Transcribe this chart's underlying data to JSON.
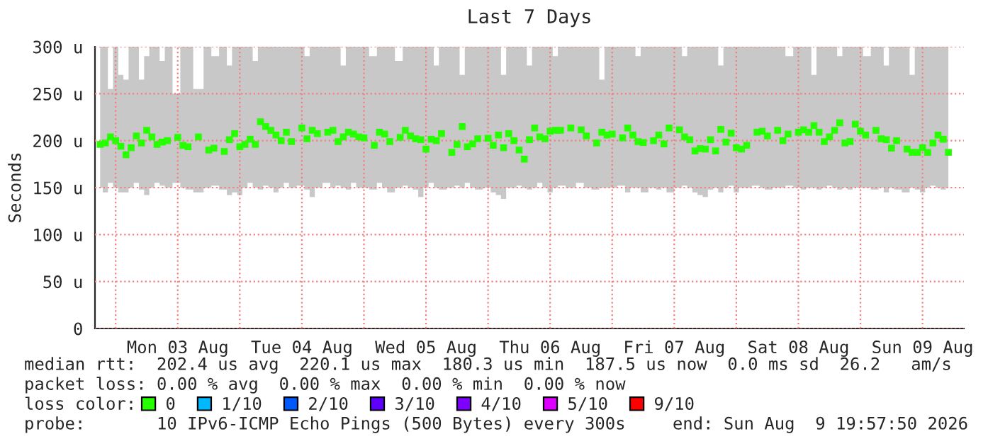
{
  "chart_data": {
    "type": "scatter",
    "title": "Last 7 Days",
    "ylabel": "Seconds",
    "legend_title": "loss color:",
    "annotations": [
      "median rtt:  202.4 us avg  220.1 us max  180.3 us min  187.5 us now  0.0 ms sd  26.2   am/s",
      "packet loss: 0.00 % avg  0.00 % max  0.00 % min  0.00 % now",
      "probe:       10 IPv6-ICMP Echo Pings (500 Bytes) every 300s",
      "end: Sun Aug  9 19:57:50 2026"
    ],
    "xlim": [
      "2026-08-02T20:00",
      "2026-08-09T20:00"
    ],
    "xticks": [
      {
        "value": "2026-08-03T00:00",
        "label": null
      },
      {
        "value": "2026-08-03T12:00",
        "label": "Mon 03 Aug"
      },
      {
        "value": "2026-08-04T00:00",
        "label": null
      },
      {
        "value": "2026-08-04T12:00",
        "label": "Tue 04 Aug"
      },
      {
        "value": "2026-08-05T00:00",
        "label": null
      },
      {
        "value": "2026-08-05T12:00",
        "label": "Wed 05 Aug"
      },
      {
        "value": "2026-08-06T00:00",
        "label": null
      },
      {
        "value": "2026-08-06T12:00",
        "label": "Thu 06 Aug"
      },
      {
        "value": "2026-08-07T00:00",
        "label": null
      },
      {
        "value": "2026-08-07T12:00",
        "label": "Fri 07 Aug"
      },
      {
        "value": "2026-08-08T00:00",
        "label": null
      },
      {
        "value": "2026-08-08T12:00",
        "label": "Sat 08 Aug"
      },
      {
        "value": "2026-08-09T00:00",
        "label": null
      },
      {
        "value": "2026-08-09T12:00",
        "label": "Sun 09 Aug"
      }
    ],
    "ylim": [
      0,
      300
    ],
    "yticks": [
      0,
      {
        "value": 50,
        "label": "50 u"
      },
      {
        "value": 100,
        "label": "100 u"
      },
      {
        "value": 150,
        "label": "150 u"
      },
      {
        "value": 200,
        "label": "200 u"
      },
      {
        "value": 250,
        "label": "250 u"
      },
      {
        "value": 300,
        "label": "300 u"
      }
    ],
    "grid": true,
    "legend": "bottom",
    "marker": "square",
    "series": [
      {
        "name": "0",
        "color": "#26ff00",
        "x": [
          "2026-08-02T21:00",
          "2026-08-02T22:00",
          "2026-08-02T23:00",
          "2026-08-03T00:00",
          "2026-08-03T01:00",
          "2026-08-03T02:00",
          "2026-08-03T03:00",
          "2026-08-03T04:00",
          "2026-08-03T05:00",
          "2026-08-03T06:00",
          "2026-08-03T07:00",
          "2026-08-03T08:00",
          "2026-08-03T09:00",
          "2026-08-03T10:00",
          "2026-08-03T12:00",
          "2026-08-03T13:00",
          "2026-08-03T14:00",
          "2026-08-03T16:00",
          "2026-08-03T18:00",
          "2026-08-03T19:00",
          "2026-08-03T21:00",
          "2026-08-03T22:00",
          "2026-08-03T23:00",
          "2026-08-04T00:00",
          "2026-08-04T01:00",
          "2026-08-04T02:00",
          "2026-08-04T03:00",
          "2026-08-04T04:00",
          "2026-08-04T05:00",
          "2026-08-04T06:00",
          "2026-08-04T07:00",
          "2026-08-04T08:00",
          "2026-08-04T09:00",
          "2026-08-04T10:00",
          "2026-08-04T12:00",
          "2026-08-04T13:00",
          "2026-08-04T14:00",
          "2026-08-04T15:00",
          "2026-08-04T17:00",
          "2026-08-04T18:00",
          "2026-08-04T19:00",
          "2026-08-04T20:00",
          "2026-08-04T21:00",
          "2026-08-04T22:00",
          "2026-08-04T23:00",
          "2026-08-05T00:00",
          "2026-08-05T02:00",
          "2026-08-05T03:00",
          "2026-08-05T04:00",
          "2026-08-05T05:00",
          "2026-08-05T07:00",
          "2026-08-05T08:00",
          "2026-08-05T09:00",
          "2026-08-05T10:00",
          "2026-08-05T11:00",
          "2026-08-05T12:00",
          "2026-08-05T13:00",
          "2026-08-05T14:00",
          "2026-08-05T15:00",
          "2026-08-05T17:00",
          "2026-08-05T18:00",
          "2026-08-05T19:00",
          "2026-08-05T20:00",
          "2026-08-05T21:00",
          "2026-08-05T22:00",
          "2026-08-06T00:00",
          "2026-08-06T01:00",
          "2026-08-06T02:00",
          "2026-08-06T03:00",
          "2026-08-06T04:00",
          "2026-08-06T05:00",
          "2026-08-06T06:00",
          "2026-08-06T07:00",
          "2026-08-06T08:00",
          "2026-08-06T09:00",
          "2026-08-06T10:00",
          "2026-08-06T11:00",
          "2026-08-06T12:00",
          "2026-08-06T13:00",
          "2026-08-06T14:00",
          "2026-08-06T16:00",
          "2026-08-06T18:00",
          "2026-08-06T19:00",
          "2026-08-06T21:00",
          "2026-08-06T22:00",
          "2026-08-06T23:00",
          "2026-08-07T00:00",
          "2026-08-07T02:00",
          "2026-08-07T03:00",
          "2026-08-07T04:00",
          "2026-08-07T05:00",
          "2026-08-07T06:00",
          "2026-08-07T08:00",
          "2026-08-07T09:00",
          "2026-08-07T10:00",
          "2026-08-07T11:00",
          "2026-08-07T13:00",
          "2026-08-07T14:00",
          "2026-08-07T15:00",
          "2026-08-07T16:00",
          "2026-08-07T17:00",
          "2026-08-07T18:00",
          "2026-08-07T19:00",
          "2026-08-07T20:00",
          "2026-08-07T21:00",
          "2026-08-07T22:00",
          "2026-08-07T23:00",
          "2026-08-08T00:00",
          "2026-08-08T01:00",
          "2026-08-08T02:00",
          "2026-08-08T04:00",
          "2026-08-08T05:00",
          "2026-08-08T06:00",
          "2026-08-08T08:00",
          "2026-08-08T09:00",
          "2026-08-08T10:00",
          "2026-08-08T12:00",
          "2026-08-08T13:00",
          "2026-08-08T14:00",
          "2026-08-08T15:00",
          "2026-08-08T16:00",
          "2026-08-08T17:00",
          "2026-08-08T18:00",
          "2026-08-08T19:00",
          "2026-08-08T20:00",
          "2026-08-08T21:00",
          "2026-08-08T22:00",
          "2026-08-08T23:00",
          "2026-08-09T00:00",
          "2026-08-09T01:00",
          "2026-08-09T03:00",
          "2026-08-09T04:00",
          "2026-08-09T05:00",
          "2026-08-09T06:00",
          "2026-08-09T07:00",
          "2026-08-09T09:00",
          "2026-08-09T10:00",
          "2026-08-09T11:00",
          "2026-08-09T12:00",
          "2026-08-09T13:00",
          "2026-08-09T14:00",
          "2026-08-09T15:00",
          "2026-08-09T16:00",
          "2026-08-09T17:00"
        ],
        "values": [
          196,
          197.5,
          204,
          200,
          194,
          185,
          192.5,
          205,
          197.5,
          211,
          204,
          196,
          198.5,
          200,
          203.5,
          195,
          193.5,
          204,
          190,
          192,
          188.5,
          201,
          207.5,
          193.5,
          196,
          201.5,
          196,
          220.1,
          215,
          211,
          206,
          200,
          209,
          199,
          213.5,
          202,
          211,
          207.5,
          209,
          211,
          199,
          204,
          209,
          207,
          204,
          203,
          195,
          209,
          207,
          199,
          203.5,
          211,
          205,
          202,
          201,
          191,
          201.5,
          200,
          207.5,
          187.5,
          196,
          215,
          193.5,
          196.5,
          202,
          202.5,
          195,
          206,
          192.5,
          207.5,
          200,
          190,
          180.3,
          201,
          213.5,
          204,
          202,
          210,
          211,
          211,
          213.5,
          211.5,
          205,
          197.5,
          209,
          206,
          207,
          203,
          213.5,
          206,
          199,
          198,
          200,
          206,
          196.5,
          213.5,
          211.5,
          204,
          201,
          189,
          191.5,
          191,
          201,
          189,
          212,
          198.5,
          208,
          192.5,
          191,
          195,
          209,
          210,
          205,
          211,
          200,
          207,
          209,
          211.5,
          209,
          216,
          209,
          199,
          204,
          211,
          219,
          197.5,
          199,
          217.5,
          210,
          206,
          211,
          202,
          201,
          192,
          200,
          191,
          187.5,
          187.5,
          192.5,
          187.5,
          197.5,
          206,
          201.5,
          187.5
        ],
        "lower": [
          150,
          145,
          155,
          150,
          145,
          145,
          150,
          155,
          148,
          142,
          150,
          155,
          152,
          150,
          155,
          150,
          148,
          145,
          150,
          152,
          148,
          142,
          145,
          142,
          150,
          155,
          150,
          148,
          152,
          150,
          145,
          150,
          155,
          150,
          152,
          148,
          140,
          150,
          155,
          150,
          152,
          150,
          148,
          155,
          150,
          150,
          148,
          155,
          150,
          145,
          150,
          152,
          150,
          148,
          140,
          150,
          155,
          150,
          148,
          150,
          152,
          150,
          155,
          150,
          148,
          150,
          145,
          142,
          138,
          150,
          150,
          152,
          150,
          148,
          150,
          155,
          150,
          145,
          150,
          152,
          150,
          155,
          150,
          148,
          150,
          150,
          150,
          152,
          145,
          150,
          150,
          145,
          150,
          148,
          150,
          145,
          150,
          152,
          150,
          145,
          142,
          140,
          148,
          150,
          145,
          150,
          152,
          145,
          150,
          150,
          152,
          150,
          148,
          150,
          150,
          152,
          150,
          148,
          150,
          150,
          148,
          150,
          152,
          150,
          148,
          150,
          148,
          150,
          150,
          150,
          148,
          150,
          145,
          150,
          148,
          145,
          150,
          148,
          145,
          150,
          152,
          150,
          148,
          150
        ],
        "upper": [
          300,
          300,
          255,
          300,
          270,
          265,
          300,
          300,
          265,
          290,
          300,
          300,
          285,
          300,
          250,
          300,
          300,
          255,
          300,
          290,
          300,
          280,
          300,
          300,
          300,
          300,
          285,
          300,
          300,
          300,
          300,
          300,
          300,
          300,
          300,
          290,
          300,
          300,
          300,
          300,
          300,
          280,
          300,
          300,
          300,
          300,
          290,
          300,
          300,
          300,
          285,
          300,
          300,
          300,
          300,
          300,
          300,
          280,
          300,
          300,
          300,
          270,
          300,
          300,
          300,
          300,
          300,
          300,
          270,
          300,
          300,
          300,
          300,
          280,
          300,
          300,
          300,
          300,
          290,
          300,
          300,
          300,
          300,
          300,
          265,
          300,
          300,
          300,
          300,
          300,
          290,
          300,
          300,
          300,
          300,
          300,
          300,
          290,
          300,
          300,
          300,
          300,
          300,
          300,
          280,
          300,
          300,
          300,
          300,
          300,
          300,
          300,
          300,
          300,
          300,
          290,
          300,
          300,
          300,
          270,
          300,
          300,
          300,
          300,
          290,
          300,
          300,
          300,
          300,
          290,
          300,
          300,
          280,
          300,
          300,
          300,
          270,
          300,
          300,
          300,
          300,
          300,
          300,
          300
        ]
      },
      {
        "name": "1/10",
        "color": "#00b8ff"
      },
      {
        "name": "2/10",
        "color": "#0059ff"
      },
      {
        "name": "3/10",
        "color": "#5e00ff"
      },
      {
        "name": "4/10",
        "color": "#7e00ff"
      },
      {
        "name": "5/10",
        "color": "#dd00ff"
      },
      {
        "name": "9/10",
        "color": "#ff0000"
      }
    ]
  }
}
